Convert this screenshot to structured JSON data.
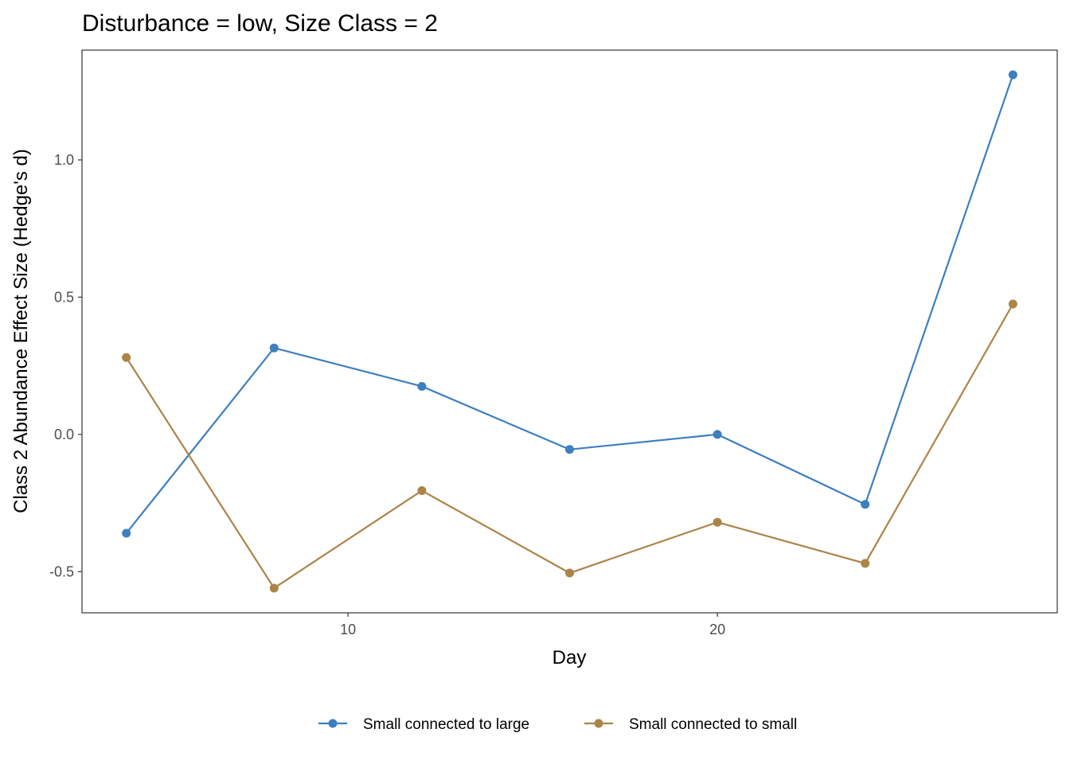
{
  "chart_data": {
    "type": "line",
    "title": "Disturbance = low, Size Class = 2",
    "xlabel": "Day",
    "ylabel": "Class 2 Abundance Effect Size (Hedge's d)",
    "x": [
      4,
      8,
      12,
      16,
      20,
      24,
      28
    ],
    "xlim": [
      2.8,
      29.2
    ],
    "ylim": [
      -0.65,
      1.4
    ],
    "xticks": [
      10,
      20
    ],
    "xtick_labels": [
      "10",
      "20"
    ],
    "yticks": [
      -0.5,
      0.0,
      0.5,
      1.0
    ],
    "ytick_labels": [
      "-0.5",
      "0.0",
      "0.5",
      "1.0"
    ],
    "grid": false,
    "legend_position": "bottom",
    "series": [
      {
        "name": "Small connected to large",
        "color": "#3d7fbf",
        "values": [
          -0.36,
          0.315,
          0.175,
          -0.055,
          0.0,
          -0.255,
          1.31
        ]
      },
      {
        "name": "Small connected to small",
        "color": "#ab8447",
        "values": [
          0.28,
          -0.56,
          -0.205,
          -0.505,
          -0.32,
          -0.47,
          0.475
        ]
      }
    ]
  }
}
